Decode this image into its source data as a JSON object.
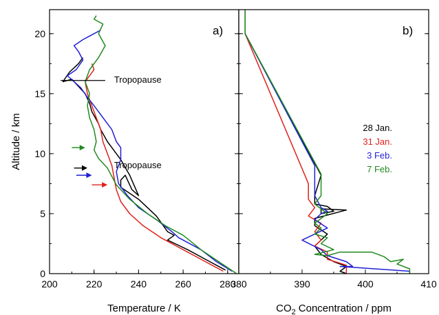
{
  "colors": {
    "black": "#000000",
    "red": "#e0201b",
    "blue": "#1f1fd6",
    "green": "#1f8a1f"
  },
  "chart_data": [
    {
      "type": "line",
      "panel_label": "a)",
      "xlabel": "Temperature / K",
      "ylabel": "Altitude / km",
      "xlim": [
        200,
        285
      ],
      "ylim": [
        0,
        22
      ],
      "xticks": [
        200,
        220,
        240,
        260,
        280
      ],
      "yticks": [
        0,
        5,
        10,
        15,
        20
      ],
      "annotations": [
        {
          "text": "Tropopause",
          "x": 229,
          "y": 15.9
        },
        {
          "text": "Tropopause",
          "x": 229,
          "y": 8.8
        }
      ],
      "tropopause_line": {
        "x": [
          205,
          225
        ],
        "y": [
          16.1,
          16.1
        ]
      },
      "arrows": [
        {
          "color": "green",
          "x_start": 210,
          "x_end": 216,
          "y": 10.5
        },
        {
          "color": "black",
          "x_start": 211,
          "x_end": 217,
          "y": 8.8
        },
        {
          "color": "blue",
          "x_start": 212,
          "x_end": 219,
          "y": 8.2
        },
        {
          "color": "red",
          "x_start": 219,
          "x_end": 226,
          "y": 7.4
        }
      ],
      "series": [
        {
          "color": "black",
          "x": [
            279,
            272,
            262,
            253,
            256,
            253,
            248,
            240,
            232,
            232,
            234,
            237,
            240,
            236,
            232,
            230,
            228,
            226,
            223,
            222,
            219,
            218,
            216,
            213,
            210,
            206,
            209,
            213,
            215
          ],
          "y": [
            0.3,
            1.0,
            2.0,
            2.8,
            3.2,
            3.5,
            4.8,
            6.2,
            7.2,
            7.8,
            8.2,
            7.0,
            6.5,
            8.2,
            9.5,
            10.0,
            10.5,
            11.0,
            12.0,
            12.5,
            13.5,
            14.2,
            15.0,
            15.6,
            16.2,
            16.0,
            16.8,
            17.5,
            18.0
          ]
        },
        {
          "color": "red",
          "x": [
            278,
            270,
            260,
            250,
            242,
            236,
            232,
            230,
            229,
            228,
            226,
            224,
            223,
            221,
            219,
            217,
            216,
            218,
            220,
            219
          ],
          "y": [
            0.2,
            1.0,
            2.0,
            3.0,
            4.0,
            5.0,
            6.0,
            7.0,
            8.0,
            9.0,
            10.0,
            11.0,
            12.0,
            13.0,
            14.0,
            15.0,
            16.0,
            16.5,
            17.0,
            17.5
          ]
        },
        {
          "color": "blue",
          "x": [
            282,
            275,
            268,
            258,
            255,
            248,
            240,
            235,
            231,
            230,
            232,
            232,
            230,
            228,
            224,
            220,
            217,
            214,
            211,
            208,
            212,
            215,
            213,
            211,
            215,
            220,
            223
          ],
          "y": [
            0.2,
            1.0,
            2.0,
            3.0,
            3.5,
            4.5,
            5.5,
            6.5,
            7.5,
            8.5,
            9.5,
            10.5,
            11.0,
            12.0,
            13.0,
            14.0,
            14.7,
            15.5,
            16.0,
            16.5,
            17.0,
            17.8,
            18.5,
            19.0,
            19.5,
            20.0,
            20.3
          ]
        },
        {
          "color": "green",
          "x": [
            284,
            276,
            268,
            264,
            260,
            252,
            244,
            236,
            230,
            226,
            222,
            220,
            221,
            220,
            218,
            217,
            218,
            216,
            218,
            222,
            225,
            222,
            224,
            220,
            221
          ],
          "y": [
            0.0,
            1.0,
            2.0,
            2.6,
            3.2,
            4.0,
            5.0,
            6.2,
            7.4,
            8.8,
            9.6,
            10.3,
            11.0,
            12.0,
            13.0,
            14.0,
            15.0,
            16.0,
            17.0,
            18.0,
            19.0,
            20.0,
            20.8,
            21.2,
            21.5
          ]
        }
      ]
    },
    {
      "type": "line",
      "panel_label": "b)",
      "xlabel": "Concentration / ppm",
      "xlabel_chem": {
        "base": "CO",
        "sub": "2"
      },
      "xlim": [
        380,
        410
      ],
      "ylim": [
        0,
        22
      ],
      "xticks": [
        380,
        390,
        400,
        410
      ],
      "yticks": [
        0,
        5,
        10,
        15,
        20
      ],
      "legend": {
        "placement": "right-center",
        "entries": [
          {
            "label": "28 Jan.",
            "color": "black"
          },
          {
            "label": "31 Jan.",
            "color": "red"
          },
          {
            "label": "3 Feb.",
            "color": "blue"
          },
          {
            "label": "7 Feb.",
            "color": "green"
          }
        ]
      },
      "series": [
        {
          "color": "black",
          "x": [
            381,
            381,
            393,
            392,
            392,
            394,
            395,
            393,
            393,
            397,
            392,
            392,
            394,
            392,
            393,
            395,
            397,
            396,
            397
          ],
          "y": [
            22,
            20,
            8.2,
            6.5,
            5.8,
            5.6,
            5.2,
            5.0,
            5.4,
            5.3,
            4.6,
            4.0,
            3.3,
            2.3,
            1.6,
            1.0,
            0.6,
            0.2,
            0.0
          ]
        },
        {
          "color": "red",
          "x": [
            381,
            391,
            391,
            392,
            391,
            393,
            392,
            393,
            392,
            394,
            394,
            397,
            397
          ],
          "y": [
            20,
            7.5,
            6.2,
            5.5,
            4.8,
            4.2,
            3.5,
            2.8,
            2.3,
            1.8,
            1.2,
            0.7,
            0.0
          ]
        },
        {
          "color": "blue",
          "x": [
            381,
            392,
            392,
            392,
            392,
            393,
            394,
            393,
            392,
            394,
            390,
            393,
            394,
            397,
            398,
            396,
            407,
            407
          ],
          "y": [
            20,
            9.0,
            8.0,
            7.0,
            6.5,
            5.5,
            5.2,
            5.0,
            4.5,
            3.8,
            2.8,
            2.0,
            1.5,
            1.0,
            0.6,
            0.6,
            0.2,
            0.0
          ]
        },
        {
          "color": "green",
          "x": [
            381,
            381,
            393,
            393,
            392,
            394,
            392,
            393,
            392,
            394,
            393,
            395,
            392,
            394,
            396,
            401,
            403,
            404,
            406,
            405,
            407,
            407
          ],
          "y": [
            22,
            20,
            8.3,
            6.5,
            5.8,
            5.0,
            4.2,
            3.8,
            3.3,
            3.0,
            2.5,
            2.0,
            1.6,
            1.5,
            1.8,
            1.8,
            1.4,
            1.0,
            1.2,
            0.8,
            0.4,
            0.0
          ]
        }
      ]
    }
  ]
}
